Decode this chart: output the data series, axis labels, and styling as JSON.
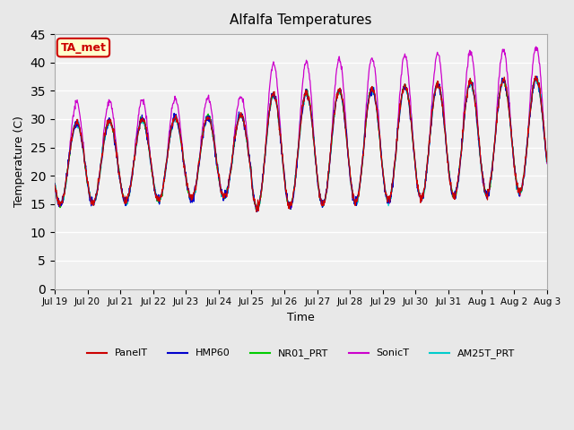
{
  "title": "Alfalfa Temperatures",
  "xlabel": "Time",
  "ylabel": "Temperature (C)",
  "ylim": [
    0,
    45
  ],
  "yticks": [
    0,
    5,
    10,
    15,
    20,
    25,
    30,
    35,
    40,
    45
  ],
  "x_tick_positions": [
    0,
    1,
    2,
    3,
    4,
    5,
    6,
    7,
    8,
    9,
    10,
    11,
    12,
    13,
    14,
    15
  ],
  "x_labels": [
    "Jul 19",
    "Jul 20",
    "Jul 21",
    "Jul 22",
    "Jul 23",
    "Jul 24",
    "Jul 25",
    "Jul 26",
    "Jul 27",
    "Jul 28",
    "Jul 29",
    "Jul 30",
    "Jul 31",
    "Aug 1",
    "Aug 2",
    "Aug 3"
  ],
  "annotation_text": "TA_met",
  "annotation_bg": "#ffffcc",
  "annotation_border": "#cc0000",
  "annotation_text_color": "#cc0000",
  "colors": {
    "PanelT": "#cc0000",
    "HMP60": "#0000cc",
    "NR01_PRT": "#00cc00",
    "SonicT": "#cc00cc",
    "AM25T_PRT": "#00cccc"
  },
  "bg_color": "#e8e8e8",
  "plot_bg": "#f0f0f0",
  "grid_color": "#ffffff",
  "n_points": 1200,
  "n_days": 15
}
